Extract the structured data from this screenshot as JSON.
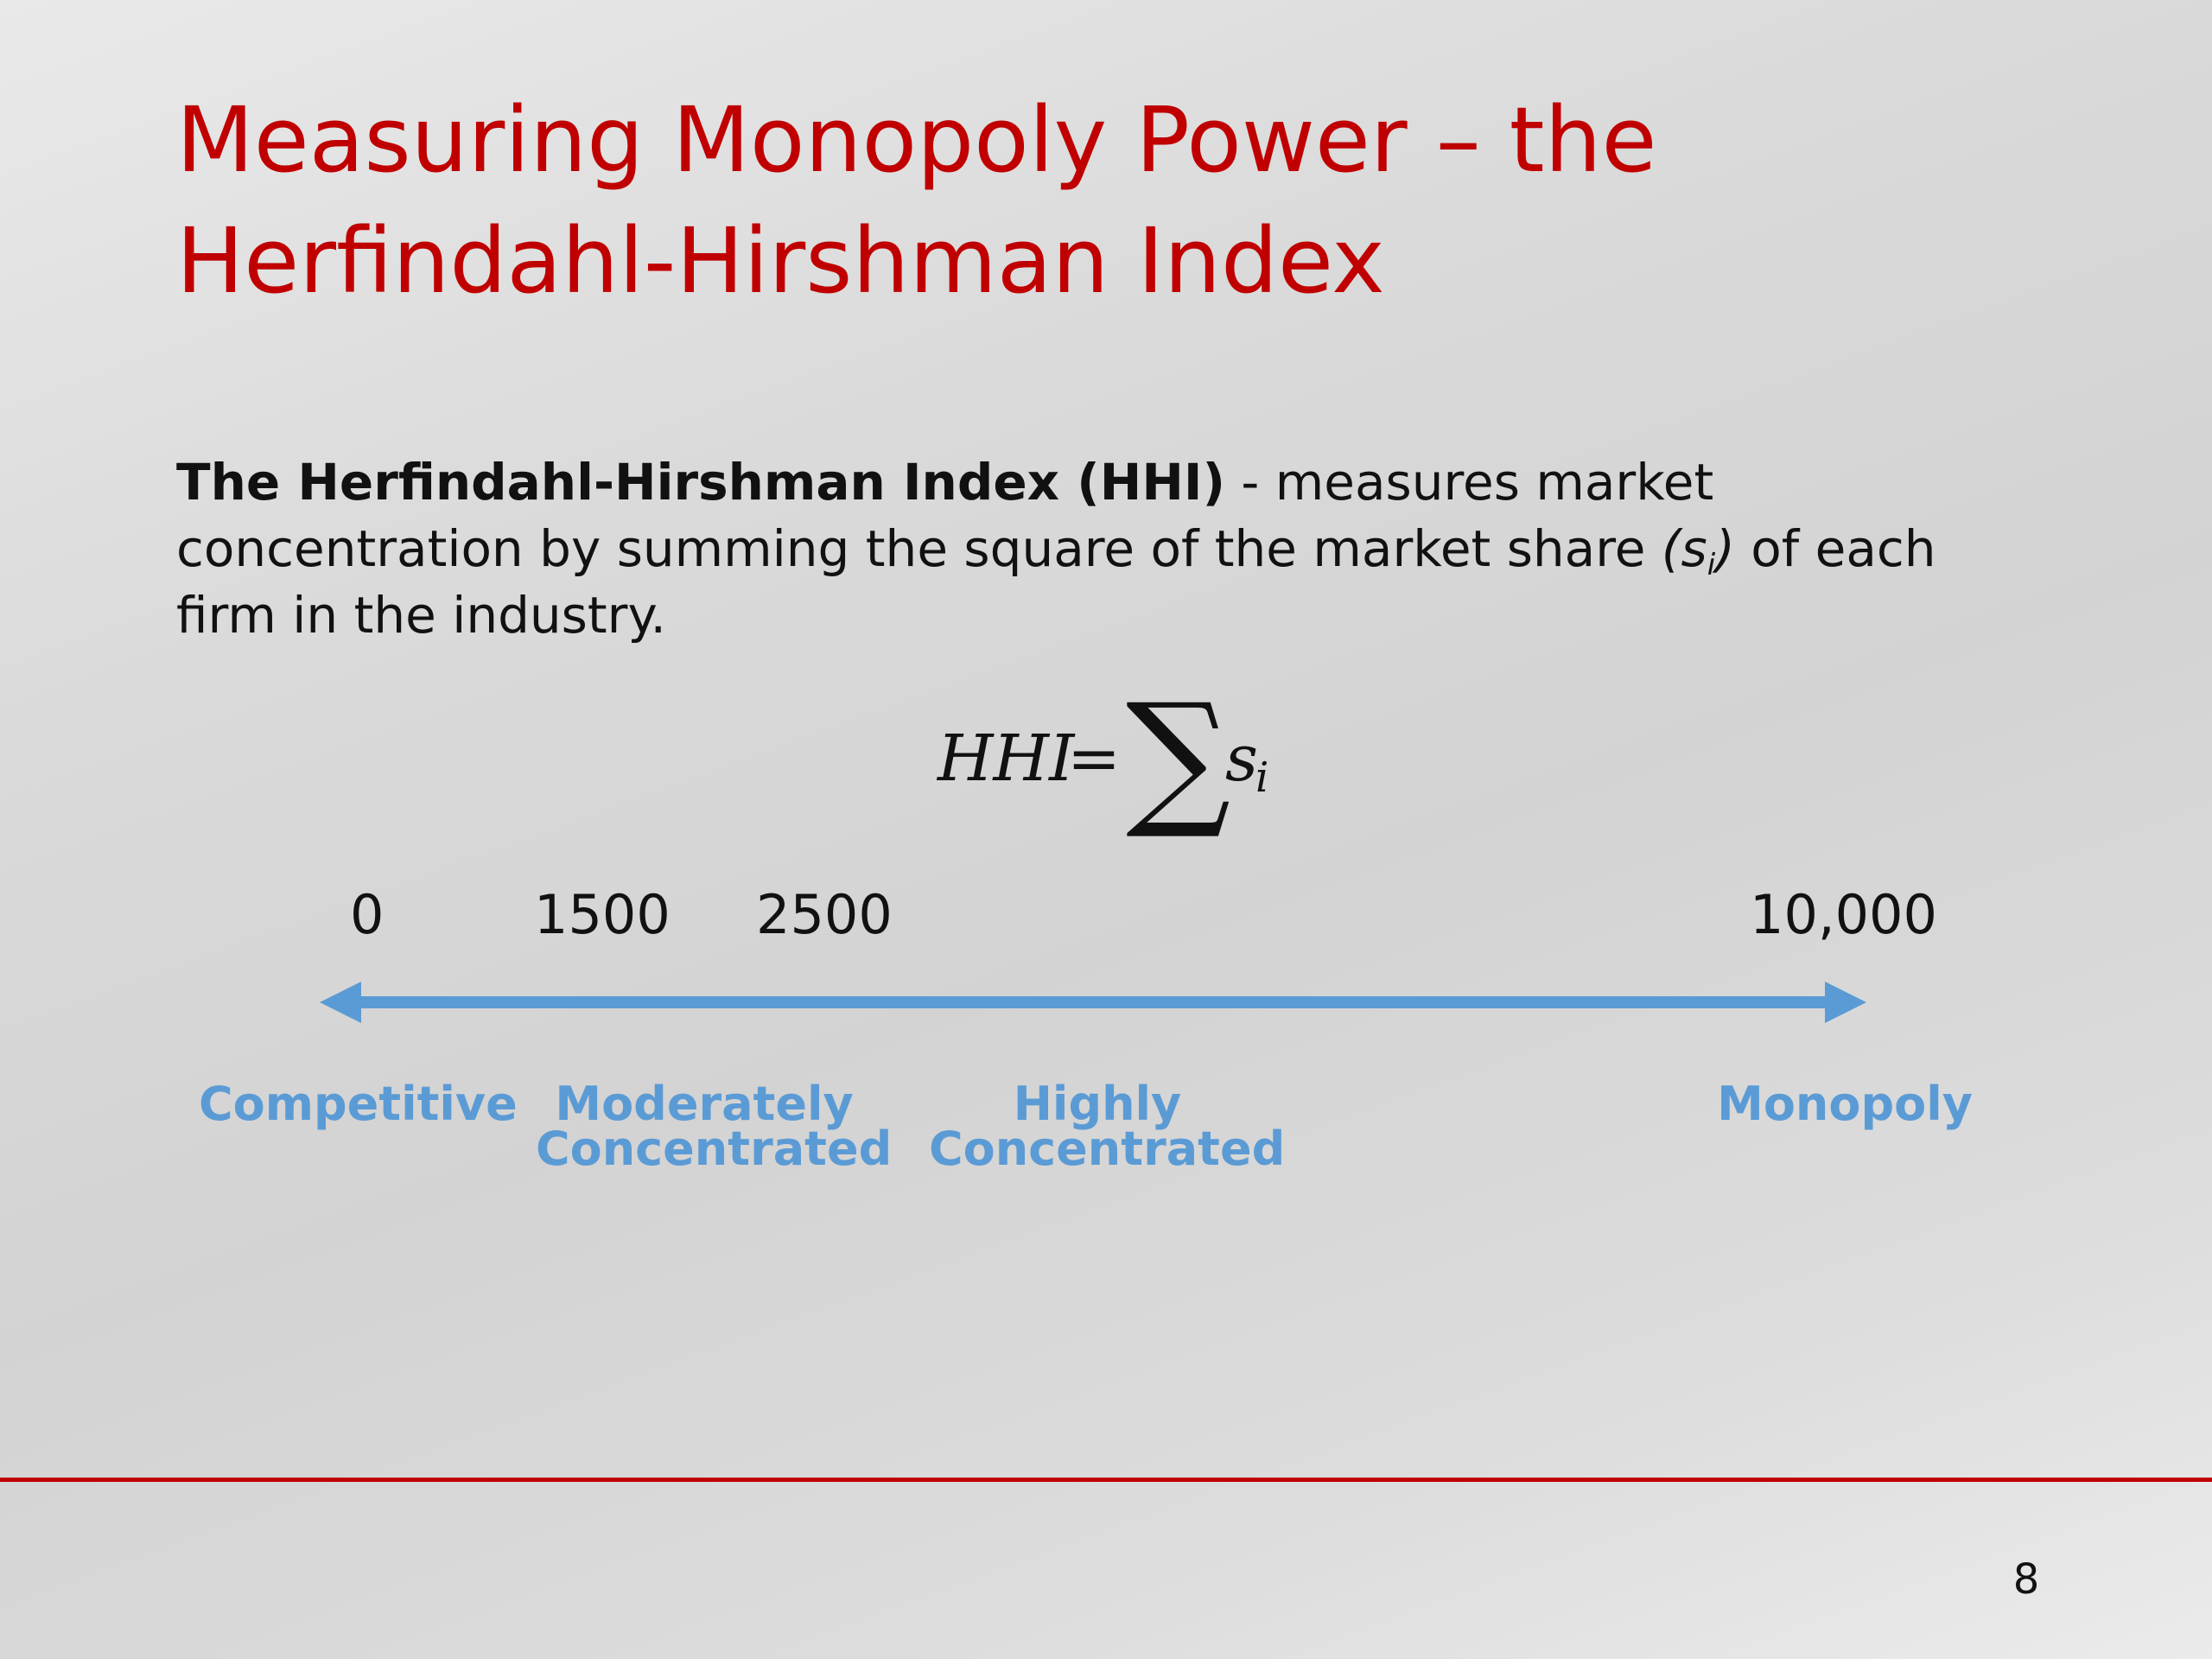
{
  "slide": {
    "title_line1": "Measuring Monopoly Power – the",
    "title_line2": "Herfindahl-Hirshman Index",
    "body": {
      "bold_term": "The Herfindahl-Hirshman Index (HHI)",
      "text_part1": " - measures market concentration by summing the square of the market share ",
      "share_open": "(s",
      "share_sub": "i",
      "share_close": ")",
      "text_part2": " of each firm in the industry."
    },
    "formula": {
      "lhs": "HHI",
      "equals": "=",
      "sigma": "∑",
      "term": "s",
      "subscript": "i"
    },
    "scale": {
      "ticks": [
        "0",
        "1500",
        "2500",
        "10,000"
      ],
      "labels": [
        {
          "line1": "Competitive",
          "line2": ""
        },
        {
          "line1": "Moderately",
          "line2": "Concentrated"
        },
        {
          "line1": "Highly",
          "line2": "Concentrated"
        },
        {
          "line1": "Monopoly",
          "line2": ""
        }
      ],
      "arrow_color": "#5b9bd5"
    },
    "page_number": "8",
    "accent_color": "#c00000"
  }
}
